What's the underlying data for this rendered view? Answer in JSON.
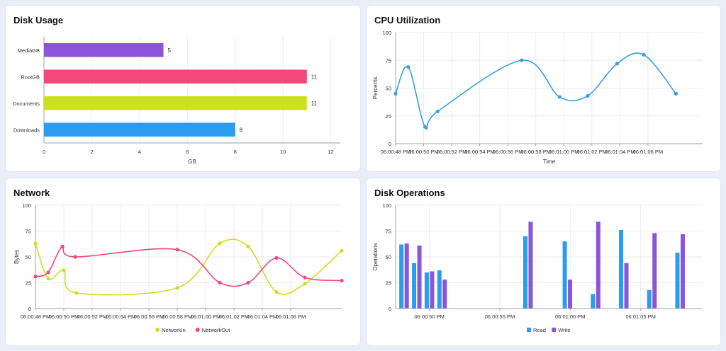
{
  "panels": {
    "disk_usage": {
      "title": "Disk Usage",
      "chart_data": {
        "type": "bar",
        "orientation": "horizontal",
        "categories": [
          "MediaGB",
          "RootGB",
          "Documents",
          "Downloads"
        ],
        "values": [
          5,
          11,
          11,
          8
        ],
        "colors": [
          "#8b55d9",
          "#f2487a",
          "#cddf21",
          "#2b9cef"
        ],
        "data_labels": [
          "5",
          "11",
          "11",
          "8"
        ],
        "xlabel": "GB",
        "xlim": [
          0,
          12.4
        ],
        "xticks": [
          "0",
          "2",
          "4",
          "6",
          "8",
          "10",
          "12"
        ]
      }
    },
    "cpu": {
      "title": "CPU Utilization",
      "chart_data": {
        "type": "line",
        "smooth": true,
        "color": "#3a9ee0",
        "xlabel": "Time",
        "ylabel": "Percents",
        "ylim": [
          0,
          100
        ],
        "yticks": [
          "0",
          "25",
          "50",
          "75",
          "100"
        ],
        "xticks": [
          "06:00:48 PM",
          "06:00:50 PM",
          "06:00:52 PM",
          "06:00:54 PM",
          "06:00:56 PM",
          "06:00:58 PM",
          "06:01:00 PM",
          "06:01:02 PM",
          "06:01:04 PM",
          "06:01:06 PM"
        ],
        "x_seconds": [
          48,
          48.9,
          50.1,
          51.0,
          57.0,
          59.7,
          61.7,
          63.8,
          65.7,
          68.0
        ],
        "y": [
          45,
          69,
          15,
          29,
          75,
          42,
          43,
          72,
          80,
          45
        ]
      }
    },
    "network": {
      "title": "Network",
      "chart_data": {
        "type": "line",
        "smooth": true,
        "ylabel": "Bytes",
        "ylim": [
          0,
          100
        ],
        "yticks": [
          "0",
          "25",
          "50",
          "75",
          "100"
        ],
        "xticks": [
          "06:00:48 PM",
          "06:00:50 PM",
          "06:00:52 PM",
          "06:00:54 PM",
          "06:00:56 PM",
          "06:00:58 PM",
          "06:01:00 PM",
          "06:01:02 PM",
          "06:01:04 PM",
          "06:01:06 PM"
        ],
        "legend": "bottom",
        "series": [
          {
            "name": "NetworkIn",
            "color": "#cddf21",
            "x_seconds": [
              48,
              48.9,
              50.0,
              50.9,
              58.0,
              61.0,
              63.0,
              65.0,
              67.0,
              69.6
            ],
            "y": [
              63,
              29,
              37,
              15,
              20,
              63,
              60,
              16,
              24,
              56
            ]
          },
          {
            "name": "NetworkOut",
            "color": "#f2487a",
            "x_seconds": [
              48,
              48.9,
              49.9,
              50.8,
              58.0,
              61.0,
              63.0,
              65.0,
              67.0,
              69.6
            ],
            "y": [
              31,
              35,
              60,
              50,
              57,
              25,
              25,
              49,
              30,
              27
            ]
          }
        ]
      }
    },
    "disk_ops": {
      "title": "Disk Operations",
      "chart_data": {
        "type": "bar",
        "ylabel": "Operations",
        "ylim": [
          0,
          100
        ],
        "yticks": [
          "0",
          "25",
          "50",
          "75",
          "100"
        ],
        "xticks": [
          "06:00:50 PM",
          "06:00:55 PM",
          "06:01:00 PM",
          "06:01:05 PM"
        ],
        "xtick_seconds": [
          50,
          55,
          60,
          65
        ],
        "legend": "bottom",
        "x_seconds": [
          48.2,
          49.1,
          50.0,
          50.9,
          57.0,
          59.8,
          61.8,
          63.8,
          65.8,
          67.8
        ],
        "series": [
          {
            "name": "Read",
            "color": "#2b9cef",
            "values": [
              62,
              44,
              35,
              37,
              70,
              65,
              14,
              76,
              18,
              54
            ]
          },
          {
            "name": "Write",
            "color": "#8b55d9",
            "values": [
              63,
              61,
              36,
              28,
              84,
              28,
              84,
              44,
              73,
              72
            ]
          }
        ]
      }
    }
  }
}
